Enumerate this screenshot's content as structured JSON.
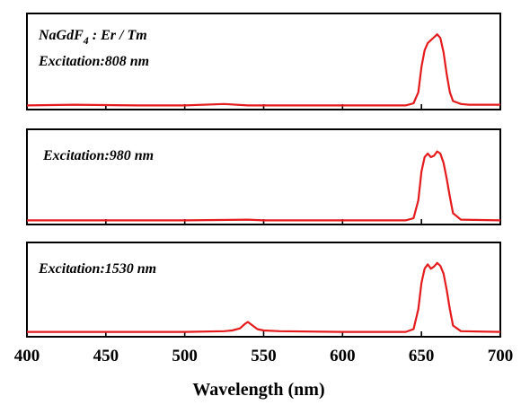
{
  "chart_data": {
    "type": "line",
    "xlabel": "Wavelength (nm)",
    "xlim": [
      400,
      700
    ],
    "xticks": [
      400,
      450,
      500,
      550,
      600,
      650,
      700
    ],
    "color": "#e41a1c",
    "compound": {
      "base": "NaGdF",
      "subscript": "4",
      "rest": " : Er / Tm"
    },
    "panels": [
      {
        "label": "Excitation:808 nm",
        "ylim": [
          0,
          1.3
        ],
        "x": [
          400,
          430,
          470,
          500,
          525,
          540,
          560,
          600,
          620,
          640,
          645,
          648,
          650,
          652,
          654,
          656,
          658,
          660,
          662,
          664,
          666,
          668,
          670,
          675,
          680,
          700
        ],
        "y": [
          0.02,
          0.03,
          0.02,
          0.02,
          0.04,
          0.02,
          0.02,
          0.02,
          0.02,
          0.02,
          0.05,
          0.2,
          0.55,
          0.78,
          0.88,
          0.92,
          0.96,
          1.0,
          0.95,
          0.75,
          0.45,
          0.2,
          0.08,
          0.04,
          0.03,
          0.03
        ]
      },
      {
        "label": "Excitation:980 nm",
        "ylim": [
          0,
          1.3
        ],
        "x": [
          400,
          450,
          500,
          540,
          550,
          600,
          640,
          645,
          648,
          650,
          652,
          654,
          656,
          658,
          660,
          662,
          664,
          666,
          668,
          670,
          675,
          700
        ],
        "y": [
          0.02,
          0.02,
          0.02,
          0.03,
          0.02,
          0.02,
          0.02,
          0.05,
          0.3,
          0.7,
          0.9,
          0.95,
          0.9,
          0.92,
          0.98,
          0.95,
          0.82,
          0.6,
          0.35,
          0.12,
          0.03,
          0.02
        ]
      },
      {
        "label": "Excitation:1530 nm",
        "ylim": [
          0,
          1.3
        ],
        "x": [
          400,
          450,
          500,
          525,
          530,
          535,
          538,
          540,
          543,
          546,
          550,
          560,
          600,
          640,
          645,
          648,
          650,
          652,
          654,
          656,
          658,
          660,
          662,
          664,
          666,
          668,
          670,
          675,
          700
        ],
        "y": [
          0.03,
          0.03,
          0.03,
          0.04,
          0.05,
          0.08,
          0.14,
          0.17,
          0.12,
          0.07,
          0.05,
          0.04,
          0.03,
          0.03,
          0.07,
          0.35,
          0.72,
          0.92,
          0.98,
          0.92,
          0.95,
          1.0,
          0.96,
          0.85,
          0.62,
          0.35,
          0.12,
          0.04,
          0.03
        ]
      }
    ]
  }
}
